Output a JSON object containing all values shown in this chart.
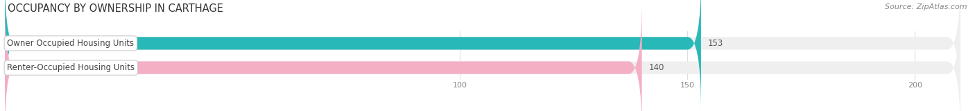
{
  "title": "OCCUPANCY BY OWNERSHIP IN CARTHAGE",
  "source": "Source: ZipAtlas.com",
  "categories": [
    "Owner Occupied Housing Units",
    "Renter-Occupied Housing Units"
  ],
  "values": [
    153,
    140
  ],
  "bar_colors": [
    "#29b8b8",
    "#f5afc4"
  ],
  "bar_bg_color": "#efefef",
  "label_text_color": "#444444",
  "value_text_color": "#555555",
  "tick_color": "#888888",
  "grid_color": "#dddddd",
  "title_color": "#333333",
  "source_color": "#888888",
  "xlim_min": 0,
  "xlim_max": 210,
  "xticks": [
    100,
    150,
    200
  ],
  "title_fontsize": 10.5,
  "source_fontsize": 8,
  "label_fontsize": 8.5,
  "value_fontsize": 8.5,
  "bar_height": 0.52,
  "figsize": [
    14.06,
    1.6
  ],
  "dpi": 100
}
